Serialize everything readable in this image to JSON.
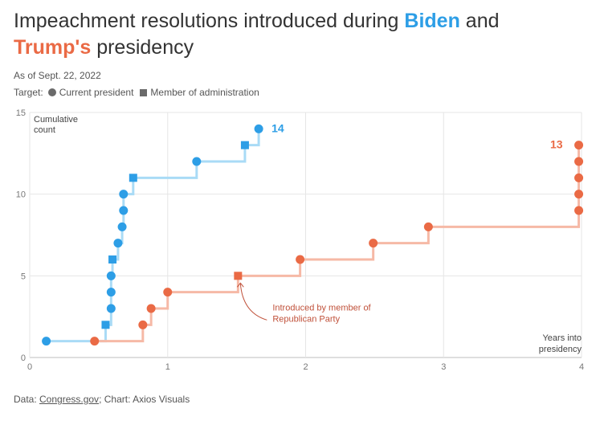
{
  "header": {
    "title_part1": "Impeachment resolutions introduced during ",
    "title_biden": "Biden",
    "title_part2": " and",
    "title_trump": "Trump's",
    "title_part3": " presidency",
    "subtitle": "As of Sept. 22, 2022",
    "legend_label": "Target:",
    "legend_circle": "Current president",
    "legend_square": "Member of administration"
  },
  "footer": {
    "prefix": "Data: ",
    "source": "Congress.gov",
    "suffix": "; Chart: Axios Visuals"
  },
  "colors": {
    "biden": "#2d9ee6",
    "biden_line": "#a9dbf6",
    "trump": "#ea6a45",
    "trump_line": "#f6b9a6",
    "annotation": "#c0513a"
  },
  "chart_data": {
    "type": "line",
    "ylabel": "Cumulative count",
    "xlabel": "Years into presidency",
    "xlim": [
      0,
      4
    ],
    "ylim": [
      0,
      15
    ],
    "x_ticks": [
      "0",
      "1",
      "2",
      "3",
      "4"
    ],
    "y_ticks": [
      "0",
      "5",
      "10",
      "15"
    ],
    "grid": true,
    "series": [
      {
        "name": "Biden",
        "end_label": "14",
        "points": [
          {
            "x": 0.12,
            "y": 1,
            "target": "president"
          },
          {
            "x": 0.55,
            "y": 2,
            "target": "administration"
          },
          {
            "x": 0.59,
            "y": 3,
            "target": "president"
          },
          {
            "x": 0.59,
            "y": 4,
            "target": "president"
          },
          {
            "x": 0.59,
            "y": 5,
            "target": "president"
          },
          {
            "x": 0.6,
            "y": 6,
            "target": "administration"
          },
          {
            "x": 0.64,
            "y": 7,
            "target": "president"
          },
          {
            "x": 0.67,
            "y": 8,
            "target": "president"
          },
          {
            "x": 0.68,
            "y": 9,
            "target": "president"
          },
          {
            "x": 0.68,
            "y": 10,
            "target": "president"
          },
          {
            "x": 0.75,
            "y": 11,
            "target": "administration"
          },
          {
            "x": 1.21,
            "y": 12,
            "target": "president"
          },
          {
            "x": 1.56,
            "y": 13,
            "target": "administration"
          },
          {
            "x": 1.66,
            "y": 14,
            "target": "president"
          }
        ]
      },
      {
        "name": "Trump",
        "end_label": "13",
        "points": [
          {
            "x": 0.47,
            "y": 1,
            "target": "president"
          },
          {
            "x": 0.82,
            "y": 2,
            "target": "president"
          },
          {
            "x": 0.88,
            "y": 3,
            "target": "president"
          },
          {
            "x": 1.0,
            "y": 4,
            "target": "president"
          },
          {
            "x": 1.51,
            "y": 5,
            "target": "administration"
          },
          {
            "x": 1.96,
            "y": 6,
            "target": "president"
          },
          {
            "x": 2.49,
            "y": 7,
            "target": "president"
          },
          {
            "x": 2.89,
            "y": 8,
            "target": "president"
          },
          {
            "x": 3.98,
            "y": 9,
            "target": "president"
          },
          {
            "x": 3.98,
            "y": 10,
            "target": "president"
          },
          {
            "x": 3.98,
            "y": 11,
            "target": "president"
          },
          {
            "x": 3.98,
            "y": 12,
            "target": "president"
          },
          {
            "x": 3.98,
            "y": 13,
            "target": "president"
          }
        ]
      }
    ],
    "annotation": {
      "text_line1": "Introduced by member of",
      "text_line2": "Republican Party",
      "x": 1.51,
      "y": 5
    }
  }
}
